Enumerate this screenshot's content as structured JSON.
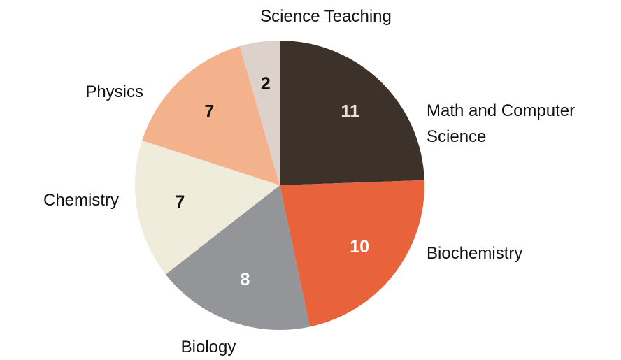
{
  "chart_data": {
    "type": "pie",
    "categories": [
      "Math and Computer Science",
      "Biochemistry",
      "Biology",
      "Chemistry",
      "Physics",
      "Science Teaching"
    ],
    "values": [
      11,
      10,
      8,
      7,
      7,
      2
    ],
    "colors": [
      "#3d3229",
      "#e8633b",
      "#939598",
      "#f0ecdc",
      "#f3b28c",
      "#ddd1cb"
    ],
    "start_angle": 0,
    "direction": "clockwise"
  }
}
